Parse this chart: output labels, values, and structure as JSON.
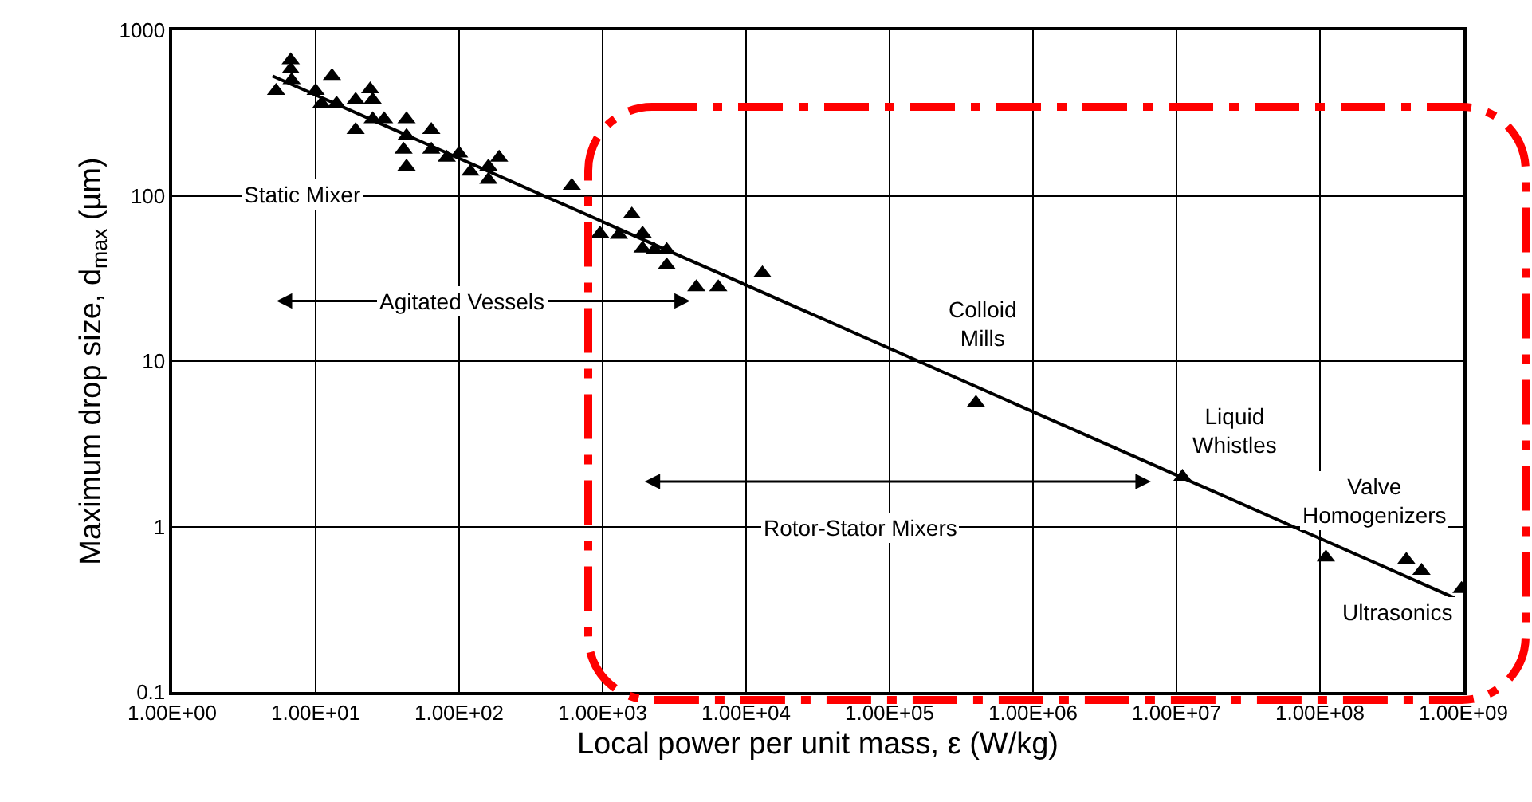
{
  "chart_data": {
    "type": "scatter",
    "xlabel": "Local power per unit mass, ε (W/kg)",
    "ylabel": "Maximum drop size, d$_{max}$ (µm)",
    "log": "xy",
    "grid": true,
    "xlim": [
      1,
      1000000000
    ],
    "ylim": [
      0.1,
      1000
    ],
    "xticks": [
      {
        "value": 1,
        "label": "1.00E+00"
      },
      {
        "value": 10,
        "label": "1.00E+01"
      },
      {
        "value": 100,
        "label": "1.00E+02"
      },
      {
        "value": 1000,
        "label": "1.00E+03"
      },
      {
        "value": 10000,
        "label": "1.00E+04"
      },
      {
        "value": 100000,
        "label": "1.00E+05"
      },
      {
        "value": 1000000,
        "label": "1.00E+06"
      },
      {
        "value": 10000000,
        "label": "1.00E+07"
      },
      {
        "value": 100000000,
        "label": "1.00E+08"
      },
      {
        "value": 1000000000,
        "label": "1.00E+09"
      }
    ],
    "yticks": [
      0.1,
      1,
      10,
      100,
      1000
    ],
    "series": [
      {
        "type": "scatter",
        "marker": "triangle",
        "color": "#000000",
        "x": [
          6.7,
          6.7,
          6.8,
          5.3,
          13,
          10,
          11,
          14,
          19,
          24,
          25,
          19,
          25,
          30,
          43,
          43,
          41,
          43,
          64,
          64,
          82,
          100,
          120,
          160,
          160,
          190,
          610,
          960,
          1300,
          1600,
          1900,
          1900,
          2300,
          2800,
          2800,
          4500,
          6400,
          13000,
          400000,
          11000000,
          110000000,
          400000000,
          510000000,
          970000000
        ],
        "values": [
          660,
          580,
          500,
          430,
          530,
          430,
          360,
          360,
          380,
          440,
          380,
          250,
          290,
          290,
          290,
          230,
          190,
          150,
          250,
          190,
          170,
          180,
          140,
          150,
          125,
          170,
          115,
          59,
          58,
          77,
          59,
          48,
          47,
          47,
          38,
          28,
          28,
          34,
          5.6,
          2.0,
          0.65,
          0.63,
          0.54,
          0.42
        ]
      },
      {
        "type": "line",
        "marker": "none",
        "line_style": "solid",
        "color": "#000000",
        "x": [
          5,
          870000000
        ],
        "values": [
          530,
          0.37
        ]
      }
    ],
    "annotations": [
      "Static Mixer",
      "Agitated Vessels",
      "Colloid\nMills",
      "Liquid\nWhistles",
      "Rotor-Stator Mixers",
      "Valve\nHomogenizers",
      "Ultrasonics"
    ]
  }
}
